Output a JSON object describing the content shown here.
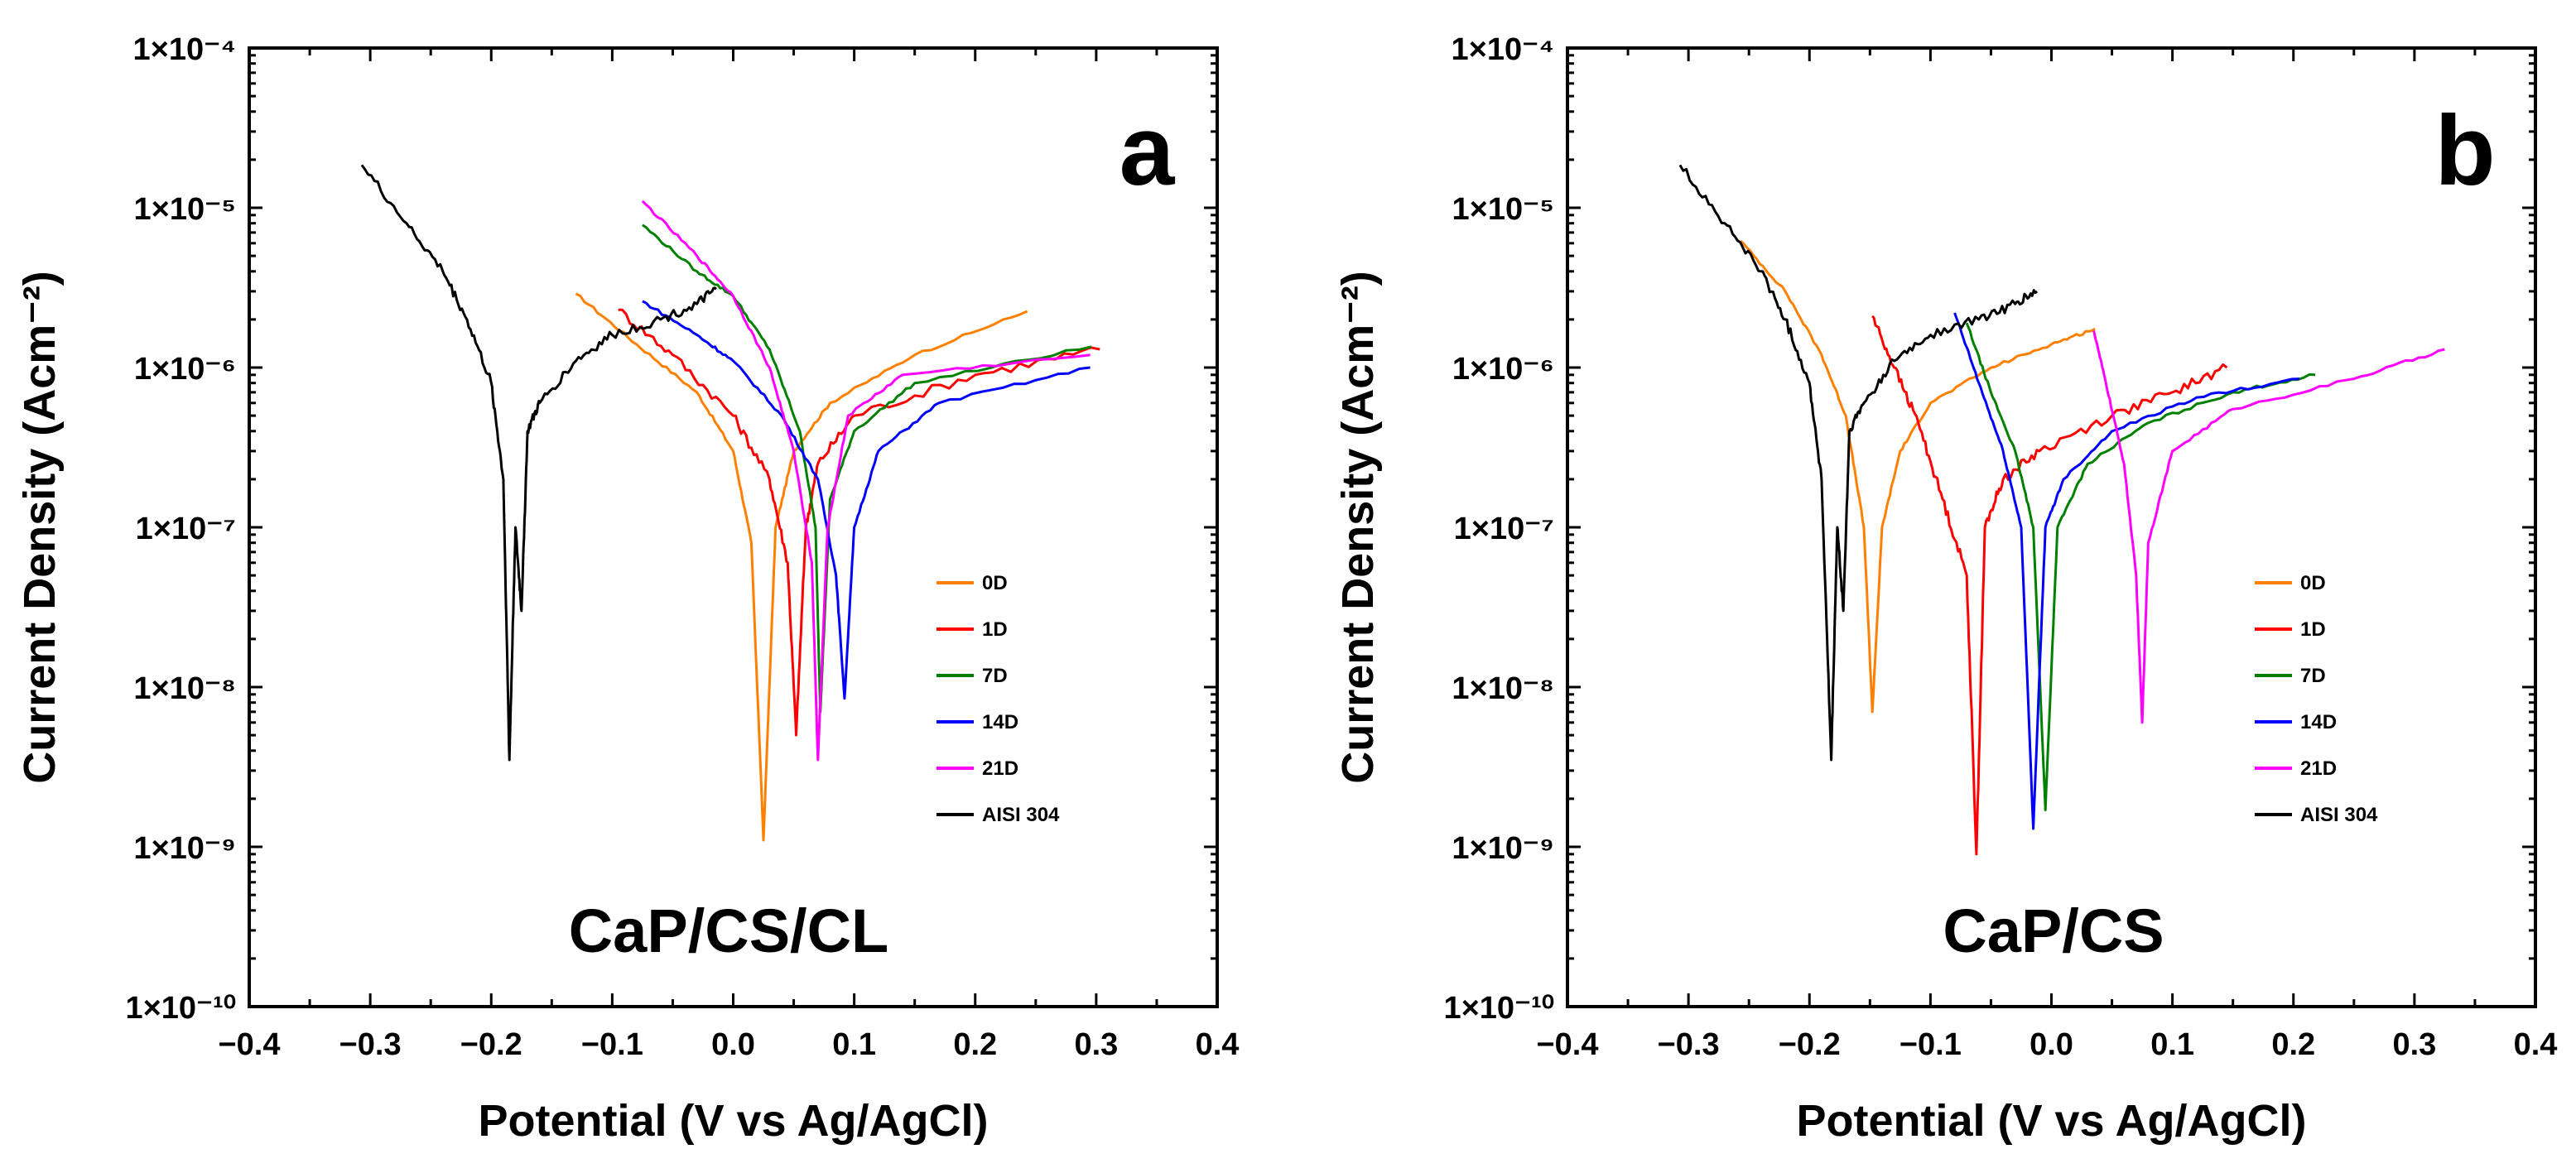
{
  "chart_data": [
    {
      "type": "line",
      "panel_label": "a",
      "title": "CaP/CS/CL",
      "xlabel": "Potential (V vs Ag/AgCl)",
      "ylabel": "Current Density (Acm⁻²)",
      "xlim": [
        -0.4,
        0.4
      ],
      "ylim": [
        1e-10,
        0.0001
      ],
      "yscale": "log",
      "xticks": [
        "-0.4",
        "-0.3",
        "-0.2",
        "-0.1",
        "0.0",
        "0.1",
        "0.2",
        "0.3",
        "0.4"
      ],
      "yticks": [
        "1×10⁻⁴",
        "1×10⁻⁵",
        "1×10⁻⁶",
        "1×10⁻⁷",
        "1×10⁻⁸",
        "1×10⁻⁹",
        "1×10⁻¹⁰"
      ],
      "legend_position": "lower-right",
      "series": [
        {
          "name": "0D",
          "color": "#FF8000",
          "points": [
            [
              -0.13,
              2.9e-06
            ],
            [
              -0.08,
              1.4e-06
            ],
            [
              -0.03,
              7e-07
            ],
            [
              0.0,
              3e-07
            ],
            [
              0.015,
              8e-08
            ],
            [
              0.025,
              1.1e-09
            ],
            [
              0.035,
              1e-07
            ],
            [
              0.05,
              3e-07
            ],
            [
              0.08,
              6e-07
            ],
            [
              0.15,
              1.2e-06
            ],
            [
              0.243,
              2.25e-06
            ]
          ]
        },
        {
          "name": "1D",
          "color": "#FF0000",
          "points": [
            [
              -0.095,
              2.3e-06
            ],
            [
              -0.05,
              1.2e-06
            ],
            [
              0.0,
              5e-07
            ],
            [
              0.03,
              2e-07
            ],
            [
              0.045,
              6e-08
            ],
            [
              0.052,
              5e-09
            ],
            [
              0.06,
              1e-07
            ],
            [
              0.07,
              2.5e-07
            ],
            [
              0.1,
              5e-07
            ],
            [
              0.2,
              9e-07
            ],
            [
              0.303,
              1.3e-06
            ]
          ]
        },
        {
          "name": "7D",
          "color": "#008000",
          "points": [
            [
              -0.075,
              7.8e-06
            ],
            [
              -0.03,
              4e-06
            ],
            [
              0.0,
              2.8e-06
            ],
            [
              0.03,
              1.3e-06
            ],
            [
              0.055,
              4e-07
            ],
            [
              0.068,
              1e-07
            ],
            [
              0.072,
              7e-09
            ],
            [
              0.08,
              1.5e-07
            ],
            [
              0.1,
              4e-07
            ],
            [
              0.15,
              8e-07
            ],
            [
              0.296,
              1.35e-06
            ]
          ]
        },
        {
          "name": "14D",
          "color": "#0000FF",
          "points": [
            [
              -0.075,
              2.6e-06
            ],
            [
              -0.03,
              1.6e-06
            ],
            [
              0.0,
              1.1e-06
            ],
            [
              0.04,
              5e-07
            ],
            [
              0.07,
              2e-07
            ],
            [
              0.085,
              5e-08
            ],
            [
              0.092,
              8.5e-09
            ],
            [
              0.1,
              1e-07
            ],
            [
              0.12,
              3e-07
            ],
            [
              0.17,
              6e-07
            ],
            [
              0.295,
              1e-06
            ]
          ]
        },
        {
          "name": "21D",
          "color": "#FF00FF",
          "points": [
            [
              -0.075,
              1.1e-05
            ],
            [
              -0.03,
              5e-06
            ],
            [
              0.0,
              2.8e-06
            ],
            [
              0.03,
              1e-06
            ],
            [
              0.05,
              3e-07
            ],
            [
              0.065,
              6e-08
            ],
            [
              0.07,
              3.5e-09
            ],
            [
              0.078,
              1e-07
            ],
            [
              0.095,
              5e-07
            ],
            [
              0.14,
              9e-07
            ],
            [
              0.295,
              1.2e-06
            ]
          ]
        },
        {
          "name": "AISI 304",
          "color": "#000000",
          "points": [
            [
              -0.307,
              1.85e-05
            ],
            [
              -0.27,
              8e-06
            ],
            [
              -0.24,
              4e-06
            ],
            [
              -0.22,
              2e-06
            ],
            [
              -0.2,
              8e-07
            ],
            [
              -0.19,
              2e-07
            ],
            [
              -0.185,
              3.5e-09
            ],
            [
              -0.18,
              1e-07
            ],
            [
              -0.175,
              3e-08
            ],
            [
              -0.17,
              4e-07
            ],
            [
              -0.16,
              6e-07
            ],
            [
              -0.13,
              1.1e-06
            ],
            [
              -0.1,
              1.6e-06
            ],
            [
              -0.06,
              2e-06
            ],
            [
              -0.03,
              2.5e-06
            ],
            [
              -0.014,
              3.1e-06
            ]
          ]
        }
      ]
    },
    {
      "type": "line",
      "panel_label": "b",
      "title": "CaP/CS",
      "xlabel": "Potential (V vs Ag/AgCl)",
      "ylabel": "Current Density (Acm⁻²)",
      "xlim": [
        -0.4,
        0.4
      ],
      "ylim": [
        1e-10,
        0.0001
      ],
      "yscale": "log",
      "xticks": [
        "-0.4",
        "-0.3",
        "-0.2",
        "-0.1",
        "0.0",
        "0.1",
        "0.2",
        "0.3",
        "0.4"
      ],
      "yticks": [
        "1×10⁻⁴",
        "1×10⁻⁵",
        "1×10⁻⁶",
        "1×10⁻⁷",
        "1×10⁻⁸",
        "1×10⁻⁹",
        "1×10⁻¹⁰"
      ],
      "legend_position": "lower-right",
      "series": [
        {
          "name": "0D",
          "color": "#FF8000",
          "points": [
            [
              -0.257,
              6.2e-06
            ],
            [
              -0.22,
              3e-06
            ],
            [
              -0.19,
              1.2e-06
            ],
            [
              -0.17,
              5e-07
            ],
            [
              -0.155,
              1e-07
            ],
            [
              -0.148,
              7e-09
            ],
            [
              -0.14,
              1e-07
            ],
            [
              -0.125,
              3e-07
            ],
            [
              -0.1,
              6e-07
            ],
            [
              -0.05,
              1e-06
            ],
            [
              0.0,
              1.4e-06
            ],
            [
              0.036,
              1.75e-06
            ]
          ]
        },
        {
          "name": "1D",
          "color": "#FF0000",
          "points": [
            [
              -0.148,
              2.1e-06
            ],
            [
              -0.13,
              1e-06
            ],
            [
              -0.11,
              4.5e-07
            ],
            [
              -0.09,
              1.5e-07
            ],
            [
              -0.07,
              5e-08
            ],
            [
              -0.062,
              9e-10
            ],
            [
              -0.055,
              1e-07
            ],
            [
              -0.04,
              2e-07
            ],
            [
              -0.01,
              3e-07
            ],
            [
              0.05,
              5e-07
            ],
            [
              0.1,
              7e-07
            ],
            [
              0.145,
              1e-06
            ]
          ]
        },
        {
          "name": "7D",
          "color": "#008000",
          "points": [
            [
              -0.07,
              1.9e-06
            ],
            [
              -0.05,
              7e-07
            ],
            [
              -0.03,
              3e-07
            ],
            [
              -0.015,
              1e-07
            ],
            [
              -0.005,
              1.7e-09
            ],
            [
              0.005,
              1e-07
            ],
            [
              0.03,
              2.5e-07
            ],
            [
              0.08,
              4.5e-07
            ],
            [
              0.15,
              7e-07
            ],
            [
              0.218,
              9e-07
            ]
          ]
        },
        {
          "name": "14D",
          "color": "#0000FF",
          "points": [
            [
              -0.08,
              2.2e-06
            ],
            [
              -0.06,
              8e-07
            ],
            [
              -0.04,
              3e-07
            ],
            [
              -0.025,
              1e-07
            ],
            [
              -0.015,
              1.3e-09
            ],
            [
              -0.005,
              1e-07
            ],
            [
              0.01,
              2e-07
            ],
            [
              0.05,
              4e-07
            ],
            [
              0.12,
              6.5e-07
            ],
            [
              0.205,
              8.5e-07
            ]
          ]
        },
        {
          "name": "21D",
          "color": "#FF00FF",
          "points": [
            [
              0.035,
              1.7e-06
            ],
            [
              0.045,
              8e-07
            ],
            [
              0.06,
              2.5e-07
            ],
            [
              0.07,
              5e-08
            ],
            [
              0.075,
              6e-09
            ],
            [
              0.08,
              8e-08
            ],
            [
              0.1,
              3e-07
            ],
            [
              0.15,
              5.5e-07
            ],
            [
              0.25,
              8.5e-07
            ],
            [
              0.325,
              1.3e-06
            ]
          ]
        },
        {
          "name": "AISI 304",
          "color": "#000000",
          "points": [
            [
              -0.307,
              1.85e-05
            ],
            [
              -0.27,
              8e-06
            ],
            [
              -0.24,
              4e-06
            ],
            [
              -0.22,
              2e-06
            ],
            [
              -0.2,
              8e-07
            ],
            [
              -0.19,
              2e-07
            ],
            [
              -0.182,
              3.5e-09
            ],
            [
              -0.177,
              1e-07
            ],
            [
              -0.172,
              3e-08
            ],
            [
              -0.167,
              4e-07
            ],
            [
              -0.155,
              6e-07
            ],
            [
              -0.13,
              1.1e-06
            ],
            [
              -0.1,
              1.6e-06
            ],
            [
              -0.06,
              2e-06
            ],
            [
              -0.03,
              2.5e-06
            ],
            [
              -0.012,
              3e-06
            ]
          ]
        }
      ]
    }
  ]
}
